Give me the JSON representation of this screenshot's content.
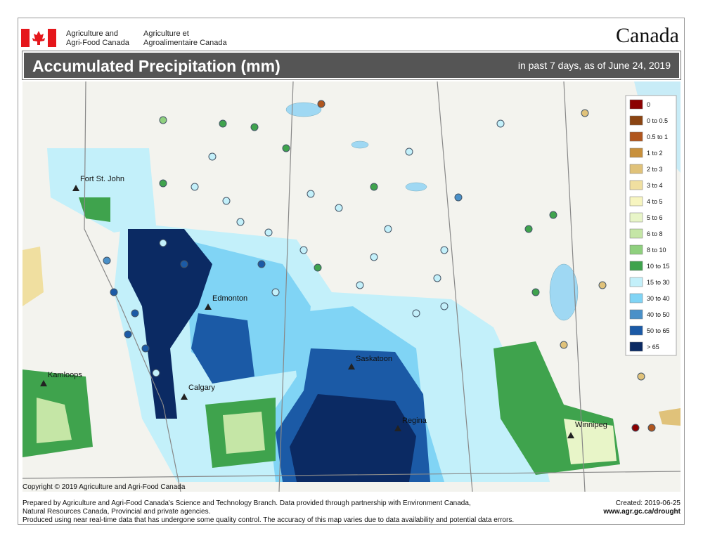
{
  "header": {
    "org_en": [
      "Agriculture and",
      "Agri-Food Canada"
    ],
    "org_fr": [
      "Agriculture et",
      "Agroalimentaire Canada"
    ],
    "wordmark": "Canada",
    "title": "Accumulated Precipitation (mm)",
    "subtitle": "in past 7 days, as of June 24, 2019"
  },
  "legend": {
    "items": [
      {
        "label": "0",
        "color": "#8b0000"
      },
      {
        "label": "0 to 0.5",
        "color": "#8b4513"
      },
      {
        "label": "0.5 to 1",
        "color": "#b0561e"
      },
      {
        "label": "1 to 2",
        "color": "#c8903c"
      },
      {
        "label": "2 to 3",
        "color": "#e0c27a"
      },
      {
        "label": "3 to 4",
        "color": "#f0dfa0"
      },
      {
        "label": "4 to 5",
        "color": "#f7f5c0"
      },
      {
        "label": "5 to 6",
        "color": "#e8f5c8"
      },
      {
        "label": "6 to 8",
        "color": "#c5e6a6"
      },
      {
        "label": "8 to 10",
        "color": "#8fd07e"
      },
      {
        "label": "10 to 15",
        "color": "#3fa34d"
      },
      {
        "label": "15 to 30",
        "color": "#c3f0fa"
      },
      {
        "label": "30 to 40",
        "color": "#80d4f5"
      },
      {
        "label": "40 to 50",
        "color": "#4a90c8"
      },
      {
        "label": "50 to 65",
        "color": "#1b5aa6"
      },
      {
        "label": "> 65",
        "color": "#0b2a63"
      }
    ]
  },
  "cities": [
    "Fort St. John",
    "Edmonton",
    "Kamloops",
    "Calgary",
    "Saskatoon",
    "Regina",
    "Winnipeg"
  ],
  "copyright": "Copyright © 2019 Agriculture and Agri-Food Canada",
  "footer": {
    "lines": [
      "Prepared by Agriculture and Agri-Food Canada's Science and Technology Branch. Data provided through partnership with Environment Canada,",
      "Natural Resources Canada, Provincial and private agencies.",
      "Produced using near real-time data that has undergone some quality control. The accuracy of this map varies due to data availability and potential data errors."
    ],
    "created": "Created: 2019-06-25",
    "url": "www.agr.gc.ca/drought"
  }
}
